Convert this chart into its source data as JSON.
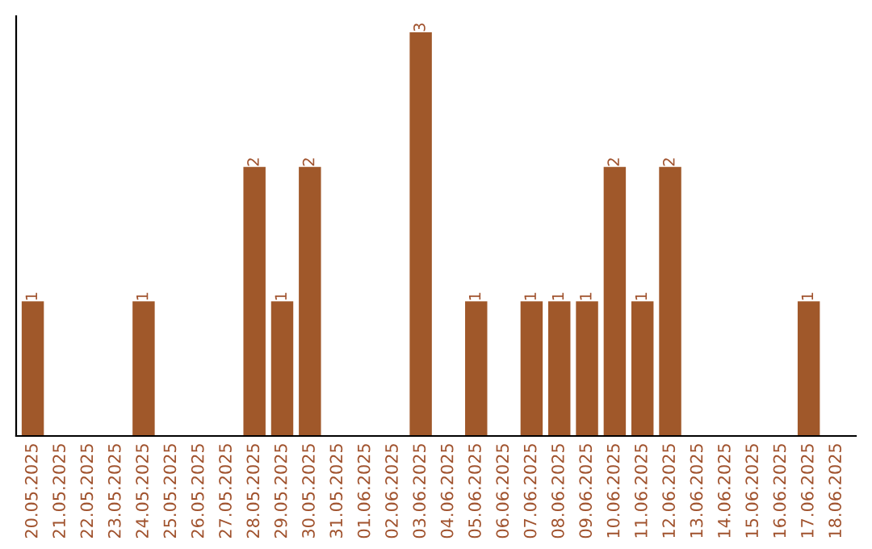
{
  "chart_data": {
    "type": "bar",
    "categories": [
      "20.05.2025",
      "21.05.2025",
      "22.05.2025",
      "23.05.2025",
      "24.05.2025",
      "25.05.2025",
      "26.05.2025",
      "27.05.2025",
      "28.05.2025",
      "29.05.2025",
      "30.05.2025",
      "31.05.2025",
      "01.06.2025",
      "02.06.2025",
      "03.06.2025",
      "04.06.2025",
      "05.06.2025",
      "06.06.2025",
      "07.06.2025",
      "08.06.2025",
      "09.06.2025",
      "10.06.2025",
      "11.06.2025",
      "12.06.2025",
      "13.06.2025",
      "14.06.2025",
      "15.06.2025",
      "16.06.2025",
      "17.06.2025",
      "18.06.2025"
    ],
    "values": [
      1,
      0,
      0,
      0,
      1,
      0,
      0,
      0,
      2,
      1,
      2,
      0,
      0,
      0,
      3,
      0,
      1,
      0,
      1,
      1,
      1,
      2,
      1,
      2,
      0,
      0,
      0,
      0,
      1,
      0
    ],
    "value_labels": [
      "1",
      null,
      null,
      null,
      "1",
      null,
      null,
      null,
      "2",
      "1",
      "2",
      null,
      null,
      null,
      "3",
      null,
      "1",
      null,
      "1",
      "1",
      "1",
      "2",
      "1",
      "2",
      null,
      null,
      null,
      null,
      "1",
      null
    ],
    "color": "#a0582a",
    "grid": false,
    "legend": false,
    "tick_labels": "x"
  }
}
